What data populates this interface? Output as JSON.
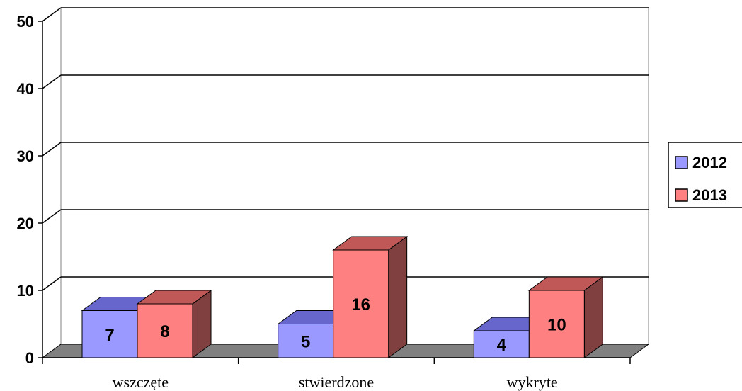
{
  "chart_data": {
    "type": "bar",
    "categories": [
      "wszczęte",
      "stwierdzone",
      "wykryte"
    ],
    "series": [
      {
        "name": "2012",
        "values": [
          7,
          5,
          4
        ],
        "color": "#9999ff",
        "top_color": "#6666cc",
        "side_color": "#555599"
      },
      {
        "name": "2013",
        "values": [
          8,
          16,
          10
        ],
        "color": "#ff8080",
        "top_color": "#c05858",
        "side_color": "#804040"
      }
    ],
    "yticks": [
      "0",
      "10",
      "20",
      "30",
      "40",
      "50"
    ],
    "ylim": [
      0,
      50
    ],
    "grid": true,
    "legend": "right",
    "floor_color": "#808080",
    "grid_color": "#000000"
  }
}
